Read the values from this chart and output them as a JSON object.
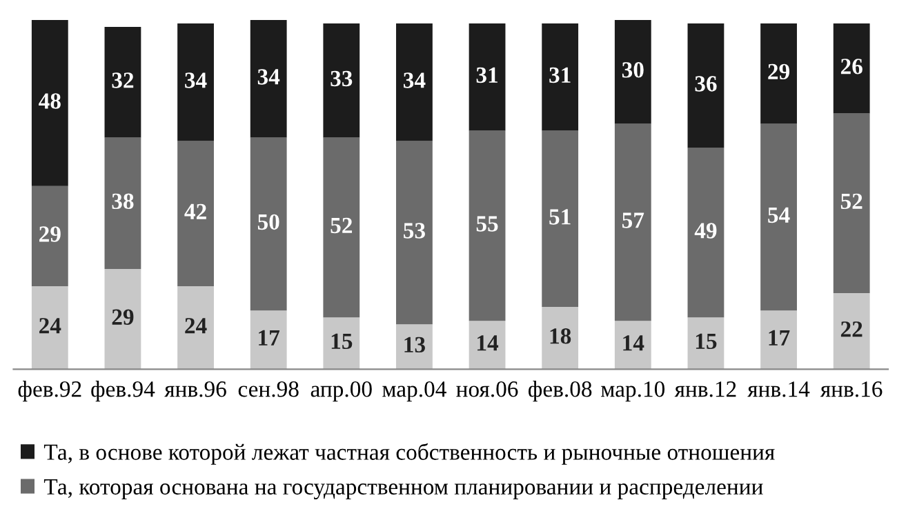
{
  "chart_data": {
    "type": "bar",
    "stacked": true,
    "data_labels": true,
    "legend": "bottom",
    "grid": false,
    "tick_labels": "x",
    "categories": [
      "фев.92",
      "фев.94",
      "янв.96",
      "сен.98",
      "апр.00",
      "мар.04",
      "ноя.06",
      "фев.08",
      "мар.10",
      "янв.12",
      "янв.14",
      "янв.16"
    ],
    "series": [
      {
        "color": "#c8c8c8",
        "values": [
          24,
          29,
          24,
          17,
          15,
          13,
          14,
          18,
          14,
          15,
          17,
          22
        ]
      },
      {
        "name": "Та, которая основана на государственном планировании и распределении",
        "color": "#6b6b6b",
        "values": [
          29,
          38,
          42,
          50,
          52,
          53,
          55,
          51,
          57,
          49,
          54,
          52
        ]
      },
      {
        "name": "Та, в основе которой лежат частная собственность и рыночные отношения",
        "color": "#1c1c1c",
        "values": [
          48,
          32,
          34,
          34,
          33,
          34,
          31,
          31,
          30,
          36,
          29,
          26
        ]
      }
    ]
  }
}
